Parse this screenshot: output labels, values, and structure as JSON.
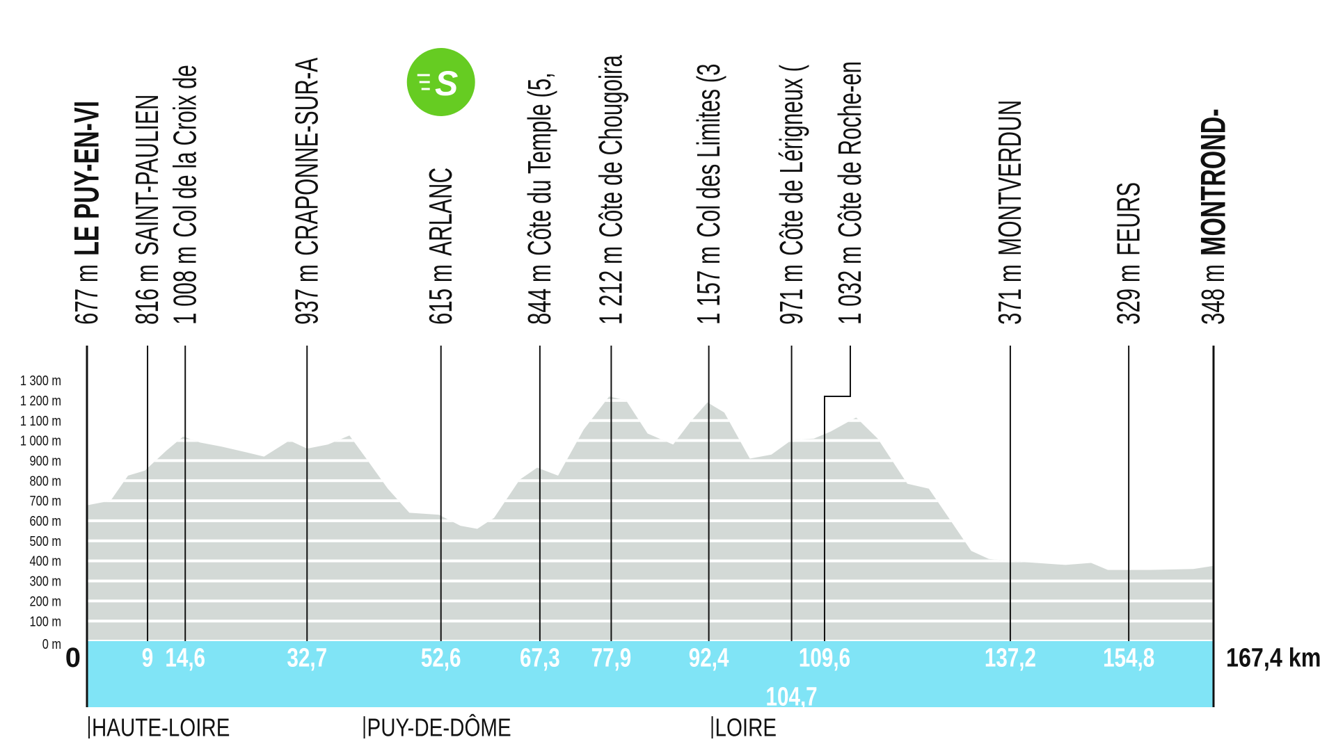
{
  "chart_data": {
    "type": "area",
    "color": "#d3d9d6",
    "band_color": "#80e4f6",
    "xlim": [
      0,
      167.4
    ],
    "ylim": [
      0,
      1300
    ],
    "grid": true,
    "yticks": [
      {
        "value": 0,
        "label": "0 m"
      },
      {
        "value": 100,
        "label": "100 m"
      },
      {
        "value": 200,
        "label": "200 m"
      },
      {
        "value": 300,
        "label": "300 m"
      },
      {
        "value": 400,
        "label": "400 m"
      },
      {
        "value": 500,
        "label": "500 m"
      },
      {
        "value": 600,
        "label": "600 m"
      },
      {
        "value": 700,
        "label": "700 m"
      },
      {
        "value": 800,
        "label": "800 m"
      },
      {
        "value": 900,
        "label": "900 m"
      },
      {
        "value": 1000,
        "label": "1 000 m"
      },
      {
        "value": 1100,
        "label": "1 100 m"
      },
      {
        "value": 1200,
        "label": "1 200 m"
      },
      {
        "value": 1300,
        "label": "1 300 m"
      }
    ],
    "x": [
      0,
      3.5,
      6.1,
      8.6,
      11.8,
      14.3,
      16.8,
      20,
      23.8,
      26.3,
      30.1,
      32.7,
      35.8,
      39,
      41.5,
      44.7,
      47.9,
      52.3,
      55.5,
      58,
      60.5,
      64.3,
      66.9,
      70,
      73.8,
      77.6,
      80.1,
      83.3,
      87.1,
      89.7,
      92.2,
      94.7,
      98.5,
      101.7,
      104.8,
      108,
      110.5,
      114.3,
      117.5,
      121.9,
      125.1,
      131.4,
      134,
      139,
      145.4,
      149.2,
      151.7,
      158,
      164.4,
      167.4
    ],
    "values": [
      677,
      700,
      825,
      850,
      950,
      1020,
      990,
      970,
      940,
      920,
      1000,
      960,
      980,
      1025,
      910,
      760,
      640,
      630,
      575,
      560,
      615,
      805,
      865,
      825,
      1055,
      1220,
      1200,
      1035,
      980,
      1095,
      1190,
      1140,
      910,
      930,
      1005,
      1010,
      1045,
      1115,
      1010,
      785,
      760,
      450,
      410,
      395,
      380,
      390,
      355,
      355,
      360,
      375
    ],
    "waypoints": [
      {
        "km": 0,
        "elevation": {
          "value": 677,
          "label": "677 m"
        },
        "name": "LE PUY-EN-VI"
      },
      {
        "km": 9,
        "elevation": {
          "value": 816,
          "label": "816 m"
        },
        "name": "SAINT-PAULIEN"
      },
      {
        "km": {
          "value": 14.6,
          "label": "14,6"
        },
        "elevation": {
          "value": 1008,
          "label": "1 008 m"
        },
        "name": "Col de la Croix de"
      },
      {
        "km": {
          "value": 32.7,
          "label": "32,7"
        },
        "elevation": {
          "value": 937,
          "label": "937 m"
        },
        "name": "CRAPONNE-SUR-A"
      },
      {
        "km": {
          "value": 52.6,
          "label": "52,6"
        },
        "elevation": {
          "value": 615,
          "label": "615 m"
        },
        "name": "ARLANC",
        "sprint": "S"
      },
      {
        "km": {
          "value": 67.3,
          "label": "67,3"
        },
        "elevation": {
          "value": 844,
          "label": "844 m"
        },
        "name": "Côte du Temple (5,"
      },
      {
        "km": {
          "value": 77.9,
          "label": "77,9"
        },
        "elevation": {
          "value": 1212,
          "label": "1 212 m"
        },
        "name": "Côte de Chougoira"
      },
      {
        "km": {
          "value": 92.4,
          "label": "92,4"
        },
        "elevation": {
          "value": 1157,
          "label": "1 157 m"
        },
        "name": "Col des Limites (3"
      },
      {
        "km": {
          "value": 104.7,
          "label": "104,7"
        },
        "elevation": {
          "value": 971,
          "label": "971 m"
        },
        "name": "Côte de Lérigneux ("
      },
      {
        "km": {
          "value": 109.6,
          "label": "109,6"
        },
        "elevation": {
          "value": 1032,
          "label": "1 032 m"
        },
        "name": "Côte de Roche-en"
      },
      {
        "km": {
          "value": 137.2,
          "label": "137,2"
        },
        "elevation": {
          "value": 371,
          "label": "371 m"
        },
        "name": "MONTVERDUN"
      },
      {
        "km": {
          "value": 154.8,
          "label": "154,8"
        },
        "elevation": {
          "value": 329,
          "label": "329 m"
        },
        "name": "FEURS"
      },
      {
        "km": {
          "value": 167.4,
          "label": "167,4 km"
        },
        "elevation": {
          "value": 348,
          "label": "348 m"
        },
        "name": "MONTROND-"
      }
    ],
    "regions": [
      {
        "start": 0,
        "name": "HAUTE-LOIRE"
      },
      {
        "start": 40.9,
        "name": "PUY-DE-DÔME"
      },
      {
        "start": 92.6,
        "name": "LOIRE"
      }
    ]
  }
}
